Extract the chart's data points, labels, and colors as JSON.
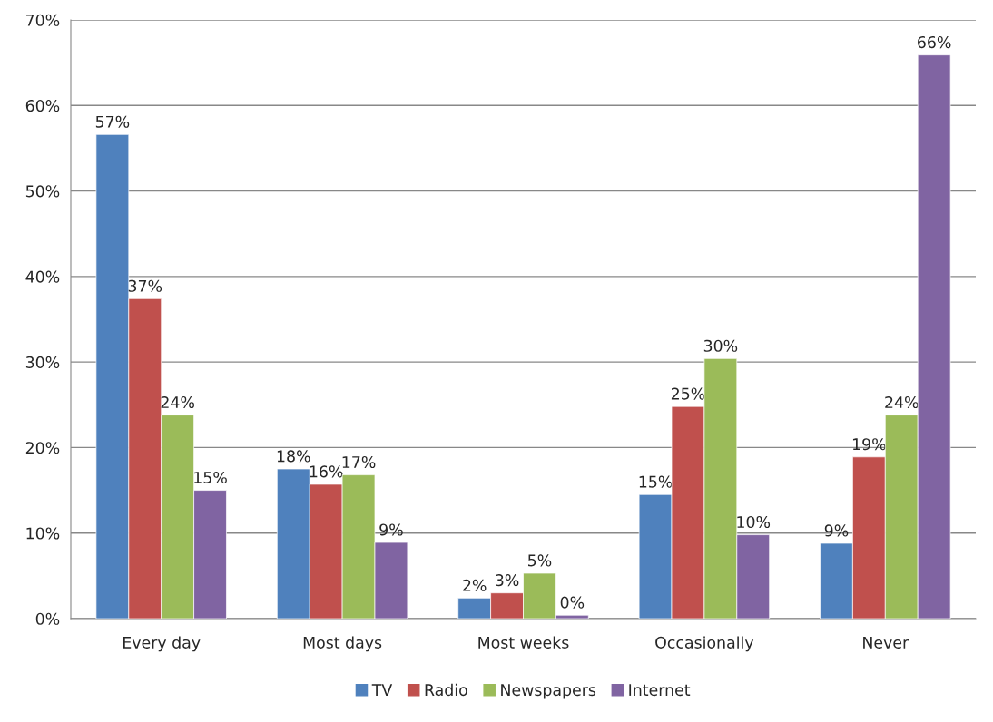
{
  "chart_data": {
    "type": "bar",
    "categories": [
      "Every day",
      "Most days",
      "Most weeks",
      "Occasionally",
      "Never"
    ],
    "series": [
      {
        "name": "TV",
        "color": "#4f81bd",
        "values": [
          56.6,
          17.5,
          2.4,
          14.5,
          8.8
        ],
        "value_labels": [
          "57%",
          "18%",
          "2%",
          "15%",
          "9%"
        ]
      },
      {
        "name": "Radio",
        "color": "#c0504d",
        "values": [
          37.4,
          15.7,
          3.0,
          24.8,
          18.9
        ],
        "value_labels": [
          "37%",
          "16%",
          "3%",
          "25%",
          "19%"
        ]
      },
      {
        "name": "Newspapers",
        "color": "#9bbb59",
        "values": [
          23.8,
          16.8,
          5.3,
          30.4,
          23.8
        ],
        "value_labels": [
          "24%",
          "17%",
          "5%",
          "30%",
          "24%"
        ]
      },
      {
        "name": "Internet",
        "color": "#8064a2",
        "values": [
          15.0,
          8.9,
          0.4,
          9.8,
          65.9
        ],
        "value_labels": [
          "15%",
          "9%",
          "0%",
          "10%",
          "66%"
        ]
      }
    ],
    "ylim": [
      0,
      70
    ],
    "yticks": [
      {
        "value": 0,
        "label": "0%"
      },
      {
        "value": 10,
        "label": "10%"
      },
      {
        "value": 20,
        "label": "20%"
      },
      {
        "value": 30,
        "label": "30%"
      },
      {
        "value": 40,
        "label": "40%"
      },
      {
        "value": 50,
        "label": "50%"
      },
      {
        "value": 60,
        "label": "60%"
      },
      {
        "value": 70,
        "label": "70%"
      }
    ],
    "grid": "y",
    "legend": "bottom"
  }
}
